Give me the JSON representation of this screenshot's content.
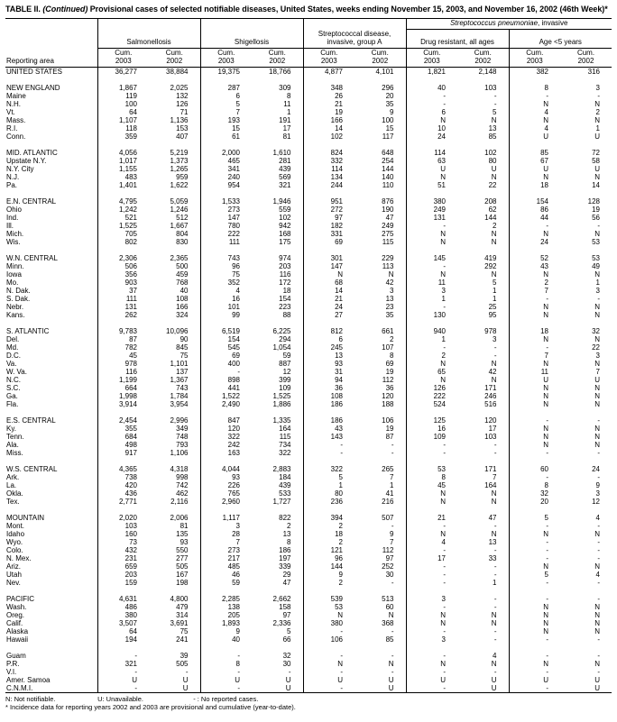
{
  "colors": {
    "background": "#ffffff",
    "text": "#000000",
    "rules": "#000000"
  },
  "title": {
    "prefix": "TABLE II. ",
    "continued": "(Continued)",
    "rest": " Provisional cases of selected notifiable diseases, United States, weeks ending November 15, 2003, and November 16, 2002 (46th Week)*"
  },
  "header": {
    "reporting_area": "Reporting area",
    "cum_label": "Cum.",
    "years": [
      "2003",
      "2002"
    ],
    "groups": [
      {
        "label": "Salmonellosis"
      },
      {
        "label": "Shigellosis"
      },
      {
        "label": "Streptococcal disease, invasive, group A"
      },
      {
        "label_italic": "Streptococcus pneumoniae",
        "label_rest": ", invasive",
        "subgroups": [
          "Drug resistant, all ages",
          "Age <5 years"
        ]
      }
    ]
  },
  "sections": [
    {
      "rows": [
        {
          "area": "UNITED STATES",
          "values": [
            "36,277",
            "38,884",
            "19,375",
            "18,766",
            "4,877",
            "4,101",
            "1,821",
            "2,148",
            "382",
            "316"
          ]
        }
      ]
    },
    {
      "rows": [
        {
          "area": "NEW ENGLAND",
          "values": [
            "1,867",
            "2,025",
            "287",
            "309",
            "348",
            "296",
            "40",
            "103",
            "8",
            "3"
          ]
        },
        {
          "area": "Maine",
          "values": [
            "119",
            "132",
            "6",
            "8",
            "26",
            "20",
            "-",
            "-",
            "-",
            "-"
          ]
        },
        {
          "area": "N.H.",
          "values": [
            "100",
            "126",
            "5",
            "11",
            "21",
            "35",
            "-",
            "-",
            "N",
            "N"
          ]
        },
        {
          "area": "Vt.",
          "values": [
            "64",
            "71",
            "7",
            "1",
            "19",
            "9",
            "6",
            "5",
            "4",
            "2"
          ]
        },
        {
          "area": "Mass.",
          "values": [
            "1,107",
            "1,136",
            "193",
            "191",
            "166",
            "100",
            "N",
            "N",
            "N",
            "N"
          ]
        },
        {
          "area": "R.I.",
          "values": [
            "118",
            "153",
            "15",
            "17",
            "14",
            "15",
            "10",
            "13",
            "4",
            "1"
          ]
        },
        {
          "area": "Conn.",
          "values": [
            "359",
            "407",
            "61",
            "81",
            "102",
            "117",
            "24",
            "85",
            "U",
            "U"
          ]
        }
      ]
    },
    {
      "rows": [
        {
          "area": "MID. ATLANTIC",
          "values": [
            "4,056",
            "5,219",
            "2,000",
            "1,610",
            "824",
            "648",
            "114",
            "102",
            "85",
            "72"
          ]
        },
        {
          "area": "Upstate N.Y.",
          "values": [
            "1,017",
            "1,373",
            "465",
            "281",
            "332",
            "254",
            "63",
            "80",
            "67",
            "58"
          ]
        },
        {
          "area": "N.Y. City",
          "values": [
            "1,155",
            "1,265",
            "341",
            "439",
            "114",
            "144",
            "U",
            "U",
            "U",
            "U"
          ]
        },
        {
          "area": "N.J.",
          "values": [
            "483",
            "959",
            "240",
            "569",
            "134",
            "140",
            "N",
            "N",
            "N",
            "N"
          ]
        },
        {
          "area": "Pa.",
          "values": [
            "1,401",
            "1,622",
            "954",
            "321",
            "244",
            "110",
            "51",
            "22",
            "18",
            "14"
          ]
        }
      ]
    },
    {
      "rows": [
        {
          "area": "E.N. CENTRAL",
          "values": [
            "4,795",
            "5,059",
            "1,533",
            "1,946",
            "951",
            "876",
            "380",
            "208",
            "154",
            "128"
          ]
        },
        {
          "area": "Ohio",
          "values": [
            "1,242",
            "1,246",
            "273",
            "559",
            "272",
            "190",
            "249",
            "62",
            "86",
            "19"
          ]
        },
        {
          "area": "Ind.",
          "values": [
            "521",
            "512",
            "147",
            "102",
            "97",
            "47",
            "131",
            "144",
            "44",
            "56"
          ]
        },
        {
          "area": "Ill.",
          "values": [
            "1,525",
            "1,667",
            "780",
            "942",
            "182",
            "249",
            "-",
            "2",
            "-",
            "-"
          ]
        },
        {
          "area": "Mich.",
          "values": [
            "705",
            "804",
            "222",
            "168",
            "331",
            "275",
            "N",
            "N",
            "N",
            "N"
          ]
        },
        {
          "area": "Wis.",
          "values": [
            "802",
            "830",
            "111",
            "175",
            "69",
            "115",
            "N",
            "N",
            "24",
            "53"
          ]
        }
      ]
    },
    {
      "rows": [
        {
          "area": "W.N. CENTRAL",
          "values": [
            "2,306",
            "2,365",
            "743",
            "974",
            "301",
            "229",
            "145",
            "419",
            "52",
            "53"
          ]
        },
        {
          "area": "Minn.",
          "values": [
            "506",
            "500",
            "96",
            "203",
            "147",
            "113",
            "-",
            "292",
            "43",
            "49"
          ]
        },
        {
          "area": "Iowa",
          "values": [
            "356",
            "459",
            "75",
            "116",
            "N",
            "N",
            "N",
            "N",
            "N",
            "N"
          ]
        },
        {
          "area": "Mo.",
          "values": [
            "903",
            "768",
            "352",
            "172",
            "68",
            "42",
            "11",
            "5",
            "2",
            "1"
          ]
        },
        {
          "area": "N. Dak.",
          "values": [
            "37",
            "40",
            "4",
            "18",
            "14",
            "3",
            "3",
            "1",
            "7",
            "3"
          ]
        },
        {
          "area": "S. Dak.",
          "values": [
            "111",
            "108",
            "16",
            "154",
            "21",
            "13",
            "1",
            "1",
            "-",
            "-"
          ]
        },
        {
          "area": "Nebr.",
          "values": [
            "131",
            "166",
            "101",
            "223",
            "24",
            "23",
            "-",
            "25",
            "N",
            "N"
          ]
        },
        {
          "area": "Kans.",
          "values": [
            "262",
            "324",
            "99",
            "88",
            "27",
            "35",
            "130",
            "95",
            "N",
            "N"
          ]
        }
      ]
    },
    {
      "rows": [
        {
          "area": "S. ATLANTIC",
          "values": [
            "9,783",
            "10,096",
            "6,519",
            "6,225",
            "812",
            "661",
            "940",
            "978",
            "18",
            "32"
          ]
        },
        {
          "area": "Del.",
          "values": [
            "87",
            "90",
            "154",
            "294",
            "6",
            "2",
            "1",
            "3",
            "N",
            "N"
          ]
        },
        {
          "area": "Md.",
          "values": [
            "782",
            "845",
            "545",
            "1,054",
            "245",
            "107",
            "-",
            "-",
            "-",
            "22"
          ]
        },
        {
          "area": "D.C.",
          "values": [
            "45",
            "75",
            "69",
            "59",
            "13",
            "8",
            "2",
            "-",
            "7",
            "3"
          ]
        },
        {
          "area": "Va.",
          "values": [
            "978",
            "1,101",
            "400",
            "887",
            "93",
            "69",
            "N",
            "N",
            "N",
            "N"
          ]
        },
        {
          "area": "W. Va.",
          "values": [
            "116",
            "137",
            "-",
            "12",
            "31",
            "19",
            "65",
            "42",
            "11",
            "7"
          ]
        },
        {
          "area": "N.C.",
          "values": [
            "1,199",
            "1,367",
            "898",
            "399",
            "94",
            "112",
            "N",
            "N",
            "U",
            "U"
          ]
        },
        {
          "area": "S.C.",
          "values": [
            "664",
            "743",
            "441",
            "109",
            "36",
            "36",
            "126",
            "171",
            "N",
            "N"
          ]
        },
        {
          "area": "Ga.",
          "values": [
            "1,998",
            "1,784",
            "1,522",
            "1,525",
            "108",
            "120",
            "222",
            "246",
            "N",
            "N"
          ]
        },
        {
          "area": "Fla.",
          "values": [
            "3,914",
            "3,954",
            "2,490",
            "1,886",
            "186",
            "188",
            "524",
            "516",
            "N",
            "N"
          ]
        }
      ]
    },
    {
      "rows": [
        {
          "area": "E.S. CENTRAL",
          "values": [
            "2,454",
            "2,996",
            "847",
            "1,335",
            "186",
            "106",
            "125",
            "120",
            "-",
            "-"
          ]
        },
        {
          "area": "Ky.",
          "values": [
            "355",
            "349",
            "120",
            "164",
            "43",
            "19",
            "16",
            "17",
            "N",
            "N"
          ]
        },
        {
          "area": "Tenn.",
          "values": [
            "684",
            "748",
            "322",
            "115",
            "143",
            "87",
            "109",
            "103",
            "N",
            "N"
          ]
        },
        {
          "area": "Ala.",
          "values": [
            "498",
            "793",
            "242",
            "734",
            "-",
            "-",
            "-",
            "-",
            "N",
            "N"
          ]
        },
        {
          "area": "Miss.",
          "values": [
            "917",
            "1,106",
            "163",
            "322",
            "-",
            "-",
            "-",
            "-",
            "-",
            "-"
          ]
        }
      ]
    },
    {
      "rows": [
        {
          "area": "W.S. CENTRAL",
          "values": [
            "4,365",
            "4,318",
            "4,044",
            "2,883",
            "322",
            "265",
            "53",
            "171",
            "60",
            "24"
          ]
        },
        {
          "area": "Ark.",
          "values": [
            "738",
            "998",
            "93",
            "184",
            "5",
            "7",
            "8",
            "7",
            "-",
            "-"
          ]
        },
        {
          "area": "La.",
          "values": [
            "420",
            "742",
            "226",
            "439",
            "1",
            "1",
            "45",
            "164",
            "8",
            "9"
          ]
        },
        {
          "area": "Okla.",
          "values": [
            "436",
            "462",
            "765",
            "533",
            "80",
            "41",
            "N",
            "N",
            "32",
            "3"
          ]
        },
        {
          "area": "Tex.",
          "values": [
            "2,771",
            "2,116",
            "2,960",
            "1,727",
            "236",
            "216",
            "N",
            "N",
            "20",
            "12"
          ]
        }
      ]
    },
    {
      "rows": [
        {
          "area": "MOUNTAIN",
          "values": [
            "2,020",
            "2,006",
            "1,117",
            "822",
            "394",
            "507",
            "21",
            "47",
            "5",
            "4"
          ]
        },
        {
          "area": "Mont.",
          "values": [
            "103",
            "81",
            "3",
            "2",
            "2",
            "-",
            "-",
            "-",
            "-",
            "-"
          ]
        },
        {
          "area": "Idaho",
          "values": [
            "160",
            "135",
            "28",
            "13",
            "18",
            "9",
            "N",
            "N",
            "N",
            "N"
          ]
        },
        {
          "area": "Wyo.",
          "values": [
            "73",
            "93",
            "7",
            "8",
            "2",
            "7",
            "4",
            "13",
            "-",
            "-"
          ]
        },
        {
          "area": "Colo.",
          "values": [
            "432",
            "550",
            "273",
            "186",
            "121",
            "112",
            "-",
            "-",
            "-",
            "-"
          ]
        },
        {
          "area": "N. Mex.",
          "values": [
            "231",
            "277",
            "217",
            "197",
            "96",
            "97",
            "17",
            "33",
            "-",
            "-"
          ]
        },
        {
          "area": "Ariz.",
          "values": [
            "659",
            "505",
            "485",
            "339",
            "144",
            "252",
            "-",
            "-",
            "N",
            "N"
          ]
        },
        {
          "area": "Utah",
          "values": [
            "203",
            "167",
            "46",
            "29",
            "9",
            "30",
            "-",
            "-",
            "5",
            "4"
          ]
        },
        {
          "area": "Nev.",
          "values": [
            "159",
            "198",
            "59",
            "47",
            "2",
            "-",
            "-",
            "1",
            "-",
            "-"
          ]
        }
      ]
    },
    {
      "rows": [
        {
          "area": "PACIFIC",
          "values": [
            "4,631",
            "4,800",
            "2,285",
            "2,662",
            "539",
            "513",
            "3",
            "-",
            "-",
            "-"
          ]
        },
        {
          "area": "Wash.",
          "values": [
            "486",
            "479",
            "138",
            "158",
            "53",
            "60",
            "-",
            "-",
            "N",
            "N"
          ]
        },
        {
          "area": "Oreg.",
          "values": [
            "380",
            "314",
            "205",
            "97",
            "N",
            "N",
            "N",
            "N",
            "N",
            "N"
          ]
        },
        {
          "area": "Calif.",
          "values": [
            "3,507",
            "3,691",
            "1,893",
            "2,336",
            "380",
            "368",
            "N",
            "N",
            "N",
            "N"
          ]
        },
        {
          "area": "Alaska",
          "values": [
            "64",
            "75",
            "9",
            "5",
            "-",
            "-",
            "-",
            "-",
            "N",
            "N"
          ]
        },
        {
          "area": "Hawaii",
          "values": [
            "194",
            "241",
            "40",
            "66",
            "106",
            "85",
            "3",
            "-",
            "-",
            "-"
          ]
        }
      ]
    },
    {
      "rows": [
        {
          "area": "Guam",
          "values": [
            "-",
            "39",
            "-",
            "32",
            "-",
            "-",
            "-",
            "4",
            "-",
            "-"
          ]
        },
        {
          "area": "P.R.",
          "values": [
            "321",
            "505",
            "8",
            "30",
            "N",
            "N",
            "N",
            "N",
            "N",
            "N"
          ]
        },
        {
          "area": "V.I.",
          "values": [
            "-",
            "-",
            "-",
            "-",
            "-",
            "-",
            "-",
            "-",
            "-",
            "-"
          ]
        },
        {
          "area": "Amer. Samoa",
          "values": [
            "U",
            "U",
            "U",
            "U",
            "U",
            "U",
            "U",
            "U",
            "U",
            "U"
          ]
        },
        {
          "area": "C.N.M.I.",
          "values": [
            "-",
            "U",
            "-",
            "U",
            "-",
            "U",
            "-",
            "U",
            "-",
            "U"
          ]
        }
      ]
    }
  ],
  "footnotes": {
    "legend": [
      "N: Not notifiable.",
      "U: Unavailable.",
      "- : No reported cases."
    ],
    "note": "* Incidence data for reporting years 2002 and 2003 are provisional and cumulative (year-to-date)."
  }
}
